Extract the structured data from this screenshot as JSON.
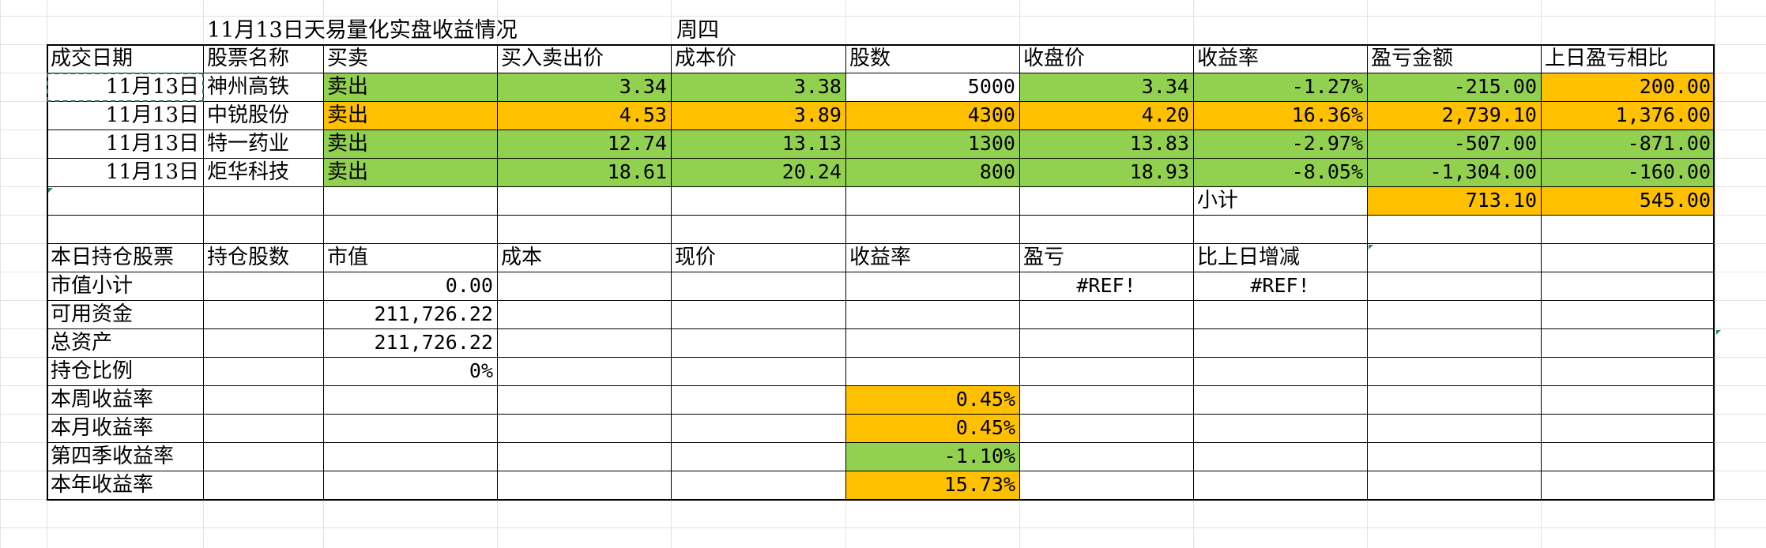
{
  "header": {
    "title": "11月13日天易量化实盘收益情况",
    "weekday": "周四"
  },
  "trades": {
    "columns": [
      "成交日期",
      "股票名称",
      "买卖",
      "买入卖出价",
      "成本价",
      "股数",
      "收盘价",
      "收益率",
      "盈亏金额",
      "上日盈亏相比"
    ],
    "rows": [
      {
        "date": "11月13日",
        "name": "神州高铁",
        "side": "卖出",
        "price": "3.34",
        "cost": "3.38",
        "shares": "5000",
        "close": "3.34",
        "ret": "-1.27%",
        "pnl": "-215.00",
        "diff": "200.00"
      },
      {
        "date": "11月13日",
        "name": "中锐股份",
        "side": "卖出",
        "price": "4.53",
        "cost": "3.89",
        "shares": "4300",
        "close": "4.20",
        "ret": "16.36%",
        "pnl": "2,739.10",
        "diff": "1,376.00"
      },
      {
        "date": "11月13日",
        "name": "特一药业",
        "side": "卖出",
        "price": "12.74",
        "cost": "13.13",
        "shares": "1300",
        "close": "13.83",
        "ret": "-2.97%",
        "pnl": "-507.00",
        "diff": "-871.00"
      },
      {
        "date": "11月13日",
        "name": "炬华科技",
        "side": "卖出",
        "price": "18.61",
        "cost": "20.24",
        "shares": "800",
        "close": "18.93",
        "ret": "-8.05%",
        "pnl": "-1,304.00",
        "diff": "-160.00"
      }
    ],
    "subtotal_label": "小计",
    "subtotal_pnl": "713.10",
    "subtotal_diff": "545.00"
  },
  "holdings": {
    "columns": [
      "本日持仓股票",
      "持仓股数",
      "市值",
      "成本",
      "现价",
      "收益率",
      "盈亏",
      "比上日增减"
    ],
    "market_total_label": "市值小计",
    "market_total_value": "0.00",
    "market_total_pnl": "#REF!",
    "market_total_change": "#REF!",
    "cash_label": "可用资金",
    "cash_value": "211,726.22",
    "assets_label": "总资产",
    "assets_value": "211,726.22",
    "ratio_label": "持仓比例",
    "ratio_value": "0%"
  },
  "returns": {
    "week_label": "本周收益率",
    "week_value": "0.45%",
    "month_label": "本月收益率",
    "month_value": "0.45%",
    "quarter_label": "第四季收益率",
    "quarter_value": "-1.10%",
    "year_label": "本年收益率",
    "year_value": "15.73%"
  },
  "colors": {
    "positive_fill": "#92d050",
    "highlight_fill": "#ffc000",
    "selection_border": "#217346"
  }
}
